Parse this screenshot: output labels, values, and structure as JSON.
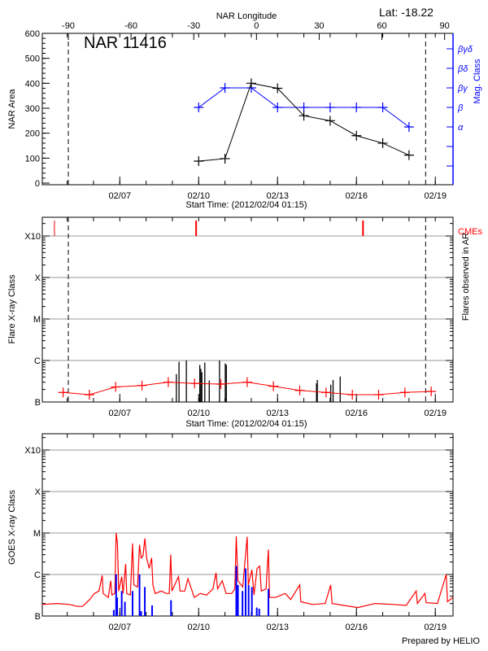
{
  "header": {
    "latitude": "Lat: -18.22",
    "top_axis_title": "NAR Longitude",
    "footer": "Prepared by HELIO"
  },
  "colors": {
    "area": "#000000",
    "mag_class": "#0000ff",
    "flare_avg": "#ff0000",
    "cme": "#ff0000",
    "goes_long": "#ff0000",
    "goes_short": "#0000ff",
    "grid": "#999999"
  },
  "time_axis": {
    "start": "2012-02-04T01:15",
    "end": "2012-02-19T16:10",
    "tick_labels": [
      "02/07",
      "02/10",
      "02/13",
      "02/16",
      "02/19"
    ],
    "tick_dates": [
      "2012-02-07T00:00",
      "2012-02-10T00:00",
      "2012-02-13T00:00",
      "2012-02-16T00:00",
      "2012-02-19T00:00"
    ],
    "title": "Start Time: (2012/02/04 01:15)"
  },
  "chart_data": [
    {
      "type": "line",
      "title": "NAR 11416",
      "ylabel": "NAR Area",
      "y2label": "Mag. Class",
      "ylim": [
        0,
        600
      ],
      "yticks": [
        "0",
        "100",
        "200",
        "300",
        "400",
        "500",
        "600"
      ],
      "top_axis": {
        "label": "NAR Longitude",
        "ticks": [
          "-90",
          "-60",
          "-30",
          "0",
          "30",
          "60",
          "90"
        ],
        "tick_dates": [
          "2012-02-05T01:00",
          "2012-02-07T10:15",
          "2012-02-09T19:30",
          "2012-02-12T04:45",
          "2012-02-14T14:00",
          "2012-02-16T23:15",
          "2012-02-19T08:30"
        ]
      },
      "limb_lines": [
        "2012-02-05T01:00",
        "2012-02-18T15:10"
      ],
      "mag_class_levels": [
        "",
        "",
        "α",
        "β",
        "βγ",
        "βδ",
        "βγδ"
      ],
      "x": [
        "2012-02-10T00:00",
        "2012-02-11T00:00",
        "2012-02-12T00:00",
        "2012-02-13T00:00",
        "2012-02-14T00:00",
        "2012-02-15T00:00",
        "2012-02-16T00:00",
        "2012-02-17T00:00",
        "2012-02-18T00:00"
      ],
      "series": [
        {
          "name": "NAR Area",
          "values": [
            88,
            98,
            400,
            380,
            270,
            250,
            190,
            160,
            112
          ]
        },
        {
          "name": "Mag. Class",
          "values": [
            "β",
            "βγ",
            "βγ",
            "β",
            "β",
            "β",
            "β",
            "β",
            "α"
          ]
        }
      ]
    },
    {
      "type": "bar",
      "ylabel": "Flare X-ray Class",
      "y2label": "Flares observed in AR",
      "class_levels": [
        "B",
        "C",
        "M",
        "X",
        "X10"
      ],
      "cme_label": "CMEs",
      "cmes": [
        "2012-02-04T12:20",
        "2012-02-09T21:40",
        "2012-02-16T06:00"
      ],
      "limb_lines": [
        "2012-02-05T01:00",
        "2012-02-18T15:10"
      ],
      "flares": [
        [
          "2012-02-09T03:39",
          "B4.7"
        ],
        [
          "2012-02-09T06:03",
          "B9.3"
        ],
        [
          "2012-02-09T12:46",
          "C1.0"
        ],
        [
          "2012-02-10T01:01",
          "B7.8"
        ],
        [
          "2012-02-10T01:58",
          "B6.3"
        ],
        [
          "2012-02-10T02:56",
          "B5.2"
        ],
        [
          "2012-02-10T05:34",
          "B8.9"
        ],
        [
          "2012-02-10T09:39",
          "B3.3"
        ],
        [
          "2012-02-10T19:01",
          "C1.0"
        ],
        [
          "2012-02-11T00:17",
          "B8.5"
        ],
        [
          "2012-02-11T01:15",
          "B7.9"
        ],
        [
          "2012-02-14T11:34",
          "B2.8"
        ],
        [
          "2012-02-14T12:17",
          "B3.4"
        ],
        [
          "2012-02-15T00:34",
          "B2.6"
        ],
        [
          "2012-02-15T02:41",
          "B3.4"
        ],
        [
          "2012-02-15T09:10",
          "B4.1"
        ]
      ],
      "background_level": [
        [
          "2012-02-04T20:15",
          "B1.7"
        ],
        [
          "2012-02-05T20:15",
          "B1.5"
        ],
        [
          "2012-02-06T20:15",
          "B2.3"
        ],
        [
          "2012-02-07T20:15",
          "B2.5"
        ],
        [
          "2012-02-08T20:15",
          "B3.0"
        ],
        [
          "2012-02-09T20:15",
          "B2.8"
        ],
        [
          "2012-02-10T20:15",
          "B2.7"
        ],
        [
          "2012-02-11T20:15",
          "B3.0"
        ],
        [
          "2012-02-12T20:15",
          "B2.4"
        ],
        [
          "2012-02-13T20:15",
          "B1.9"
        ],
        [
          "2012-02-14T20:15",
          "B1.7"
        ],
        [
          "2012-02-15T20:15",
          "B1.5"
        ],
        [
          "2012-02-16T20:15",
          "B1.5"
        ],
        [
          "2012-02-17T20:15",
          "B1.7"
        ],
        [
          "2012-02-18T20:15",
          "B1.8"
        ]
      ]
    },
    {
      "type": "line",
      "ylabel": "GOES X-ray Class",
      "class_levels": [
        "B",
        "C",
        "M",
        "X",
        "X10"
      ],
      "series": [
        {
          "name": "",
          "color": "#ff0000",
          "points": [
            [
              "2012-02-04T01:15",
              "B1.9"
            ],
            [
              "2012-02-04T14:40",
              "B2.0"
            ],
            [
              "2012-02-05T02:00",
              "B1.9"
            ],
            [
              "2012-02-05T09:10",
              "B1.7"
            ],
            [
              "2012-02-05T14:00",
              "B1.7"
            ],
            [
              "2012-02-05T20:30",
              "B2.5"
            ],
            [
              "2012-02-06T00:45",
              "B3.5"
            ],
            [
              "2012-02-06T05:00",
              "B4.0"
            ],
            [
              "2012-02-06T08:00",
              "B9.5"
            ],
            [
              "2012-02-06T08:45",
              "B3.5"
            ],
            [
              "2012-02-06T13:30",
              "B2.8"
            ],
            [
              "2012-02-06T15:40",
              "B7.1"
            ],
            [
              "2012-02-06T16:50",
              "B3.2"
            ],
            [
              "2012-02-06T19:30",
              "B3.5"
            ],
            [
              "2012-02-06T20:40",
              "M1.0"
            ],
            [
              "2012-02-06T21:50",
              "C5.6"
            ],
            [
              "2012-02-06T23:00",
              "B4.0"
            ],
            [
              "2012-02-07T01:45",
              "B8.9"
            ],
            [
              "2012-02-07T03:00",
              "B3.5"
            ],
            [
              "2012-02-07T05:20",
              "C1.8"
            ],
            [
              "2012-02-07T06:20",
              "B3.5"
            ],
            [
              "2012-02-07T09:40",
              "B3.2"
            ],
            [
              "2012-02-07T11:40",
              "C5.6"
            ],
            [
              "2012-02-07T12:50",
              "B5.6"
            ],
            [
              "2012-02-07T16:10",
              "B5.0"
            ],
            [
              "2012-02-07T18:00",
              "C5.2"
            ],
            [
              "2012-02-07T19:30",
              "C2.5"
            ],
            [
              "2012-02-07T21:10",
              "C2.8"
            ],
            [
              "2012-02-07T22:50",
              "C7.4"
            ],
            [
              "2012-02-08T00:30",
              "C2.5"
            ],
            [
              "2012-02-08T02:50",
              "C1.4"
            ],
            [
              "2012-02-08T05:00",
              "C2.5"
            ],
            [
              "2012-02-08T06:15",
              "B5.6"
            ],
            [
              "2012-02-08T08:15",
              "B3.5"
            ],
            [
              "2012-02-08T13:55",
              "B4.0"
            ],
            [
              "2012-02-08T18:15",
              "B3.5"
            ],
            [
              "2012-02-08T21:10",
              "B3.5"
            ],
            [
              "2012-02-08T22:30",
              "C3.0"
            ],
            [
              "2012-02-08T23:35",
              "B4.0"
            ],
            [
              "2012-02-09T05:35",
              "B8.9"
            ],
            [
              "2012-02-09T07:00",
              "B4.0"
            ],
            [
              "2012-02-09T11:20",
              "B4.0"
            ],
            [
              "2012-02-09T14:15",
              "B7.9"
            ],
            [
              "2012-02-09T20:00",
              "B2.8"
            ],
            [
              "2012-02-10T01:30",
              "B3.5"
            ],
            [
              "2012-02-10T07:15",
              "B3.2"
            ],
            [
              "2012-02-10T13:00",
              "B4.5"
            ],
            [
              "2012-02-10T15:50",
              "C1.1"
            ],
            [
              "2012-02-10T17:15",
              "B4.5"
            ],
            [
              "2012-02-10T21:30",
              "B7.1"
            ],
            [
              "2012-02-11T01:00",
              "B3.5"
            ],
            [
              "2012-02-11T06:05",
              "B3.5"
            ],
            [
              "2012-02-11T09:00",
              "B4.5"
            ],
            [
              "2012-02-11T10:20",
              "C8.3"
            ],
            [
              "2012-02-11T11:50",
              "B7.1"
            ],
            [
              "2012-02-11T16:10",
              "B5.0"
            ],
            [
              "2012-02-11T20:15",
              "C8.1"
            ],
            [
              "2012-02-11T21:20",
              "B5.6"
            ],
            [
              "2012-02-12T00:35",
              "C1.3"
            ],
            [
              "2012-02-12T02:30",
              "B3.2"
            ],
            [
              "2012-02-12T05:20",
              "C1.4"
            ],
            [
              "2012-02-12T07:40",
              "C1.6"
            ],
            [
              "2012-02-12T09:10",
              "B4.0"
            ],
            [
              "2012-02-12T13:30",
              "B4.5"
            ],
            [
              "2012-02-12T15:40",
              "C4.0"
            ],
            [
              "2012-02-12T16:40",
              "B2.8"
            ],
            [
              "2012-02-12T22:00",
              "B2.8"
            ],
            [
              "2012-02-13T07:00",
              "B3.5"
            ],
            [
              "2012-02-13T12:05",
              "B2.5"
            ],
            [
              "2012-02-13T20:15",
              "B5.6"
            ],
            [
              "2012-02-13T21:15",
              "B2.2"
            ],
            [
              "2012-02-14T08:00",
              "B1.9"
            ],
            [
              "2012-02-14T19:30",
              "B2.0"
            ],
            [
              "2012-02-15T00:30",
              "B5.6"
            ],
            [
              "2012-02-15T01:45",
              "B2.0"
            ],
            [
              "2012-02-15T12:30",
              "B1.8"
            ],
            [
              "2012-02-16T01:15",
              "B1.6"
            ],
            [
              "2012-02-16T17:05",
              "B2.0"
            ],
            [
              "2012-02-17T10:05",
              "B1.9"
            ],
            [
              "2012-02-17T21:25",
              "B1.8"
            ],
            [
              "2012-02-18T06:30",
              "B4.0"
            ],
            [
              "2012-02-18T07:40",
              "B2.0"
            ],
            [
              "2012-02-18T14:30",
              "B3.5"
            ],
            [
              "2012-02-18T15:40",
              "B2.1"
            ],
            [
              "2012-02-19T02:00",
              "B2.0"
            ],
            [
              "2012-02-19T09:55",
              "C1.0"
            ],
            [
              "2012-02-19T11:05",
              "B2.2"
            ],
            [
              "2012-02-19T16:10",
              "B2.8"
            ]
          ]
        },
        {
          "name": "",
          "color": "#0000ff",
          "points": [
            [
              "2012-02-06T18:30",
              "B1.4"
            ],
            [
              "2012-02-06T20:40",
              "C1.0"
            ],
            [
              "2012-02-06T21:35",
              "B2.8"
            ],
            [
              "2012-02-07T01:45",
              "B4.0"
            ],
            [
              "2012-02-07T04:40",
              "B2.2"
            ],
            [
              "2012-02-07T11:40",
              "B4.0"
            ],
            [
              "2012-02-07T18:00",
              "C1.0"
            ],
            [
              "2012-02-07T19:30",
              "B1.3"
            ],
            [
              "2012-02-07T22:50",
              "B5.0"
            ],
            [
              "2012-02-08T05:30",
              "B1.8"
            ],
            [
              "2012-02-08T22:45",
              "B2.4"
            ],
            [
              "2012-02-11T10:20",
              "C1.6"
            ],
            [
              "2012-02-11T11:50",
              "B5.6"
            ],
            [
              "2012-02-11T16:00",
              "B4.0"
            ],
            [
              "2012-02-11T18:50",
              "C1.4"
            ],
            [
              "2012-02-11T21:35",
              "B5.6"
            ],
            [
              "2012-02-12T00:35",
              "B5.0"
            ],
            [
              "2012-02-12T05:00",
              "B1.6"
            ],
            [
              "2012-02-12T07:15",
              "B1.5"
            ],
            [
              "2012-02-12T15:40",
              "B4.5"
            ]
          ]
        }
      ]
    }
  ]
}
